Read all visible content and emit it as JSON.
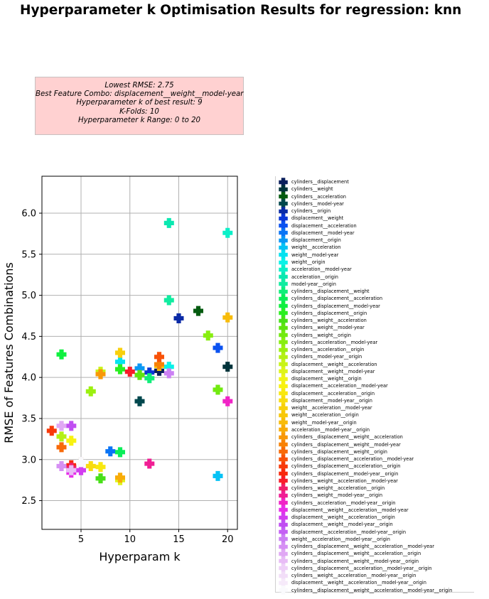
{
  "chart_data": {
    "type": "scatter",
    "title": "Hyperparameter k Optimisation Results for regression: knn",
    "xlabel": "Hyperparam k",
    "ylabel": "RMSE of Features Combinations",
    "xlim": [
      1,
      21
    ],
    "ylim": [
      2.15,
      6.45
    ],
    "xticks": [
      5,
      10,
      15,
      20
    ],
    "yticks": [
      2.5,
      3.0,
      3.5,
      4.0,
      4.5,
      5.0,
      5.5,
      6.0
    ],
    "grid": true,
    "marker": "plus",
    "legend_position": "right",
    "info_box": {
      "lines": [
        "Lowest RMSE: 2.75",
        "Best Feature Combo: displacement__weight__model-year",
        "Hyperparameter k of best result: 9",
        "K-Folds: 10",
        "Hyperparameter k Range: 0 to 20"
      ]
    },
    "series": [
      {
        "name": "cylinders__displacement",
        "color": "#0b1f5c",
        "x": 13,
        "y": 4.08
      },
      {
        "name": "cylinders__weight",
        "color": "#00333a",
        "x": 20,
        "y": 4.13
      },
      {
        "name": "cylinders__acceleration",
        "color": "#045b10",
        "x": 17,
        "y": 4.81
      },
      {
        "name": "cylinders__model-year",
        "color": "#00474d",
        "x": 11,
        "y": 3.71
      },
      {
        "name": "cylinders__origin",
        "color": "#0a2aa6",
        "x": 15,
        "y": 4.72
      },
      {
        "name": "displacement__weight",
        "color": "#0a36d6",
        "x": 12,
        "y": 4.06
      },
      {
        "name": "displacement__acceleration",
        "color": "#0b52f0",
        "x": 19,
        "y": 4.36
      },
      {
        "name": "displacement__model-year",
        "color": "#0a74f5",
        "x": 8,
        "y": 3.1
      },
      {
        "name": "displacement__origin",
        "color": "#0a98f5",
        "x": 11,
        "y": 4.11
      },
      {
        "name": "weight__acceleration",
        "color": "#05c2f5",
        "x": 19,
        "y": 2.8
      },
      {
        "name": "weight__model-year",
        "color": "#05e2f0",
        "x": 9,
        "y": 4.19
      },
      {
        "name": "weight__origin",
        "color": "#0af2e8",
        "x": 14,
        "y": 4.13
      },
      {
        "name": "acceleration__model-year",
        "color": "#0af0c8",
        "x": 20,
        "y": 5.76
      },
      {
        "name": "acceleration__origin",
        "color": "#0ae8b0",
        "x": 14,
        "y": 5.88
      },
      {
        "name": "model-year__origin",
        "color": "#10eca0",
        "x": 14,
        "y": 4.94
      },
      {
        "name": "cylinders__displacement__weight",
        "color": "#10ee7a",
        "x": 12,
        "y": 3.99
      },
      {
        "name": "cylinders__displacement__acceleration",
        "color": "#0aee58",
        "x": 9,
        "y": 3.09
      },
      {
        "name": "cylinders__displacement__model-year",
        "color": "#10f040",
        "x": 3,
        "y": 4.28
      },
      {
        "name": "cylinders__displacement__origin",
        "color": "#2aef20",
        "x": 9,
        "y": 4.1
      },
      {
        "name": "cylinders__weight__acceleration",
        "color": "#48e018",
        "x": 7,
        "y": 2.77
      },
      {
        "name": "cylinders__weight__model-year",
        "color": "#5ee410",
        "x": 11,
        "y": 4.03
      },
      {
        "name": "cylinders__weight__origin",
        "color": "#72ea10",
        "x": 19,
        "y": 3.85
      },
      {
        "name": "cylinders__acceleration__model-year",
        "color": "#88ee10",
        "x": 18,
        "y": 4.51
      },
      {
        "name": "cylinders__acceleration__origin",
        "color": "#9cf010",
        "x": 6,
        "y": 3.83
      },
      {
        "name": "cylinders__model-year__origin",
        "color": "#b4f015",
        "x": 3,
        "y": 3.28
      },
      {
        "name": "displacement__weight__acceleration",
        "color": "#c8f418",
        "x": 7,
        "y": 4.07
      },
      {
        "name": "displacement__weight__model-year",
        "color": "#def41a",
        "x": 9,
        "y": 2.75
      },
      {
        "name": "displacement__weight__origin",
        "color": "#f0f418",
        "x": 5,
        "y": 2.97
      },
      {
        "name": "displacement__acceleration__model-year",
        "color": "#f8f210",
        "x": 4,
        "y": 3.23
      },
      {
        "name": "displacement__acceleration__origin",
        "color": "#f8e810",
        "x": 7,
        "y": 2.91
      },
      {
        "name": "displacement__model-year__origin",
        "color": "#f8dc10",
        "x": 6,
        "y": 2.92
      },
      {
        "name": "weight__acceleration__model-year",
        "color": "#f8d00c",
        "x": 9,
        "y": 4.3
      },
      {
        "name": "weight__acceleration__origin",
        "color": "#f8c80a",
        "x": 13,
        "y": 4.14
      },
      {
        "name": "weight__model-year__origin",
        "color": "#f8bc0a",
        "x": 20,
        "y": 4.73
      },
      {
        "name": "acceleration__model-year__origin",
        "color": "#f8ac08",
        "x": 9,
        "y": 2.78
      },
      {
        "name": "cylinders__displacement__weight__acceleration",
        "color": "#f89808",
        "x": 7,
        "y": 4.04
      },
      {
        "name": "cylinders__displacement__weight__model-year",
        "color": "#f88206",
        "x": 13,
        "y": 4.16
      },
      {
        "name": "cylinders__displacement__weight__origin",
        "color": "#f86a08",
        "x": 3,
        "y": 3.15
      },
      {
        "name": "cylinders__displacement__acceleration__model-year",
        "color": "#f85208",
        "x": 13,
        "y": 4.25
      },
      {
        "name": "cylinders__displacement__acceleration__origin",
        "color": "#f83a0a",
        "x": 2,
        "y": 3.35
      },
      {
        "name": "cylinders__displacement__model-year__origin",
        "color": "#f8280c",
        "x": 4,
        "y": 2.93
      },
      {
        "name": "cylinders__weight__acceleration__model-year",
        "color": "#f81c2a",
        "x": 10,
        "y": 4.07
      },
      {
        "name": "cylinders__weight__acceleration__origin",
        "color": "#f01e6a",
        "x": 4,
        "y": 2.9
      },
      {
        "name": "cylinders__weight__model-year__origin",
        "color": "#f01e94",
        "x": 12,
        "y": 2.95
      },
      {
        "name": "cylinders__acceleration__model-year__origin",
        "color": "#f024c6",
        "x": 20,
        "y": 3.71
      },
      {
        "name": "displacement__weight__acceleration__model-year",
        "color": "#e82ee8",
        "x": 4,
        "y": 2.84
      },
      {
        "name": "displacement__weight__acceleration__origin",
        "color": "#d23ef0",
        "x": 5,
        "y": 2.87
      },
      {
        "name": "displacement__weight__model-year__origin",
        "color": "#c04ef2",
        "x": 4,
        "y": 3.41
      },
      {
        "name": "displacement__acceleration__model-year__origin",
        "color": "#c460f4",
        "x": 4,
        "y": 2.87
      },
      {
        "name": "weight__acceleration__model-year__origin",
        "color": "#cc80f4",
        "x": 14,
        "y": 4.05
      },
      {
        "name": "cylinders__displacement__weight__acceleration__model-year",
        "color": "#d690f4",
        "x": 3,
        "y": 2.92
      },
      {
        "name": "cylinders__displacement__weight__acceleration__origin",
        "color": "#e0a8f4",
        "x": 3,
        "y": 3.41
      },
      {
        "name": "cylinders__displacement__weight__model-year__origin",
        "color": "#e8bcf6",
        "x": 4,
        "y": 2.87
      },
      {
        "name": "cylinders__displacement__acceleration__model-year__origin",
        "color": "#eed0f8",
        "x": 5,
        "y": 2.97
      },
      {
        "name": "cylinders__weight__acceleration__model-year__origin",
        "color": "#f2def8",
        "x": 5,
        "y": 2.97
      },
      {
        "name": "displacement__weight__acceleration__model-year__origin",
        "color": "#f6eafa",
        "x": 5,
        "y": 2.97
      },
      {
        "name": "cylinders__displacement__weight__acceleration__model-year__origin",
        "color": "#fafafd",
        "x": 5,
        "y": 2.97
      }
    ]
  }
}
